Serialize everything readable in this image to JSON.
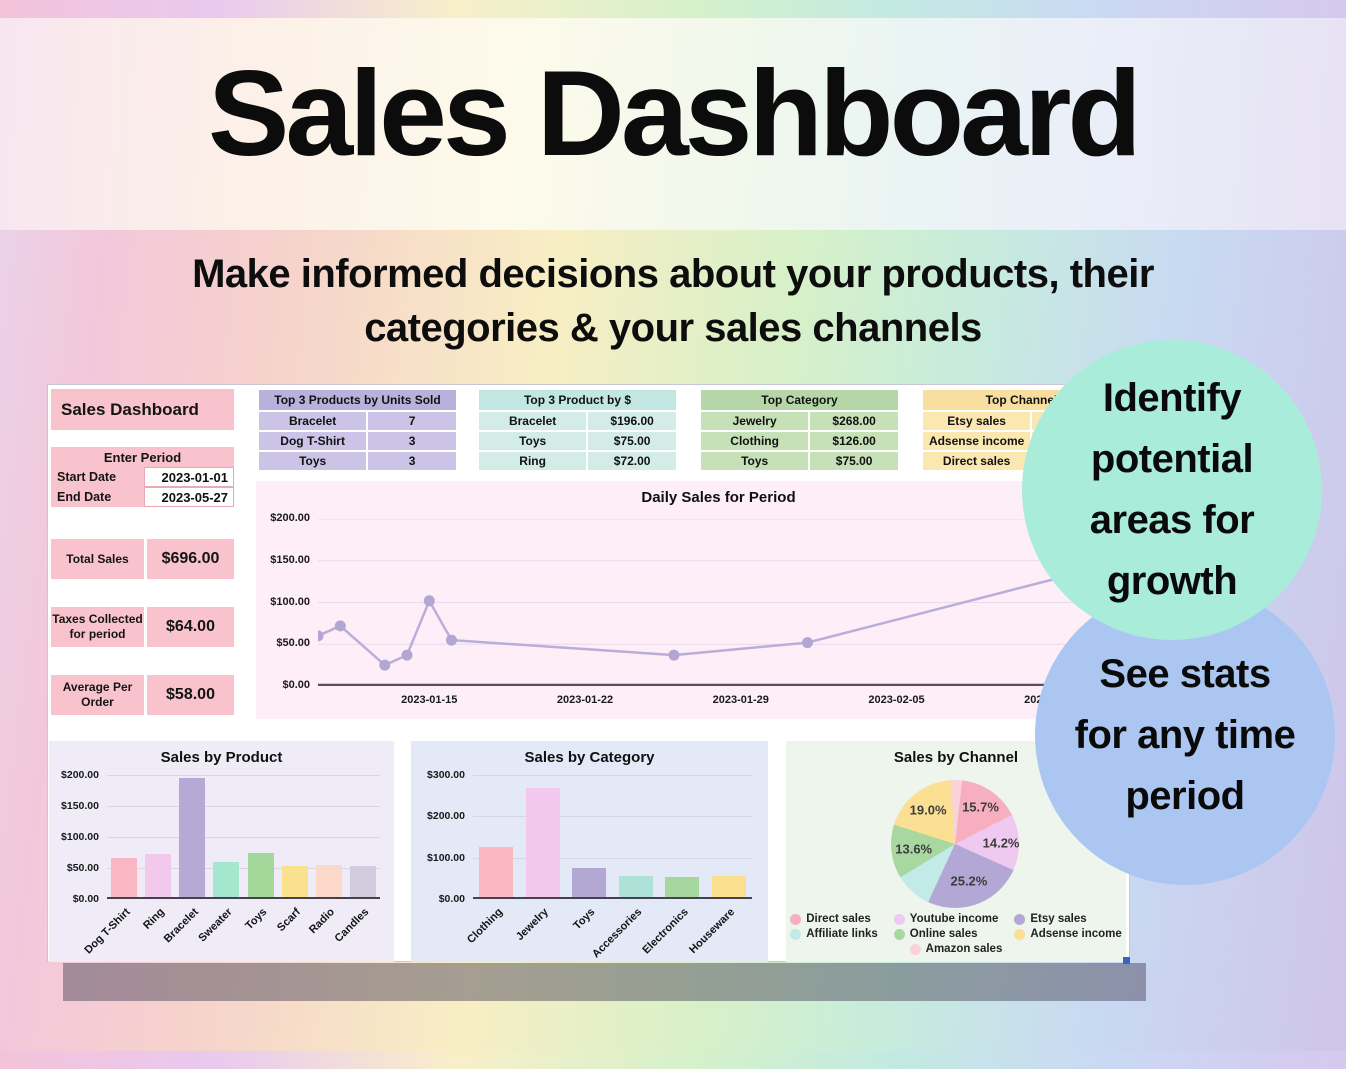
{
  "banner": {
    "title": "Sales Dashboard",
    "subtitle_lines": [
      "Make informed decisions about your products, their",
      "categories & your sales channels"
    ]
  },
  "badges": {
    "growth": {
      "lines": [
        "Identify",
        "potential",
        "areas for",
        "growth"
      ],
      "color": "#a9ecd9"
    },
    "period": {
      "lines": [
        "See stats",
        "for any time",
        "period"
      ],
      "color": "#abc6f1"
    }
  },
  "dashboard": {
    "panel": {
      "title": "Sales Dashboard",
      "enter_period": {
        "header": "Enter Period",
        "rows": [
          {
            "label": "Start Date",
            "value": "2023-01-01"
          },
          {
            "label": "End Date",
            "value": "2023-05-27"
          }
        ]
      },
      "stats": [
        {
          "label": "Total Sales",
          "value": "$696.00"
        },
        {
          "label": "Taxes Collected\nfor period",
          "value": "$64.00"
        },
        {
          "label": "Average Per\nOrder",
          "value": "$58.00"
        }
      ]
    },
    "top_tables": [
      {
        "title": "Top 3 Products by Units Sold",
        "accent": "purple",
        "header_color": "#b9b1dc",
        "row_color": "#cbc4e6",
        "rows": [
          [
            "Bracelet",
            "7"
          ],
          [
            "Dog T-Shirt",
            "3"
          ],
          [
            "Toys",
            "3"
          ]
        ]
      },
      {
        "title": "Top 3 Product by $",
        "accent": "teal",
        "header_color": "#c2e7e2",
        "row_color": "#d3ece8",
        "rows": [
          [
            "Bracelet",
            "$196.00"
          ],
          [
            "Toys",
            "$75.00"
          ],
          [
            "Ring",
            "$72.00"
          ]
        ]
      },
      {
        "title": "Top Category",
        "accent": "green",
        "header_color": "#b5d7a8",
        "row_color": "#c6e1b8",
        "rows": [
          [
            "Jewelry",
            "$268.00"
          ],
          [
            "Clothing",
            "$126.00"
          ],
          [
            "Toys",
            "$75.00"
          ]
        ]
      },
      {
        "title": "Top Channel",
        "accent": "yellow",
        "header_color": "#f8dfa0",
        "row_color": "#fae8b0",
        "rows": [
          [
            "Etsy sales",
            ""
          ],
          [
            "Adsense income",
            ""
          ],
          [
            "Direct sales",
            ""
          ]
        ]
      }
    ]
  },
  "colors": {
    "pink_block": "#f9c3cd",
    "line": "#b9aed9",
    "line_point": "#b2a6d2",
    "badge_teal": "#a9ecd9",
    "badge_blue": "#abc6f1"
  },
  "chart_data": [
    {
      "id": "daily",
      "type": "line",
      "title": "Daily Sales for Period",
      "points": [
        {
          "x": "2023-01-10",
          "y": 60
        },
        {
          "x": "2023-01-11",
          "y": 72
        },
        {
          "x": "2023-01-13",
          "y": 25
        },
        {
          "x": "2023-01-14",
          "y": 37
        },
        {
          "x": "2023-01-15",
          "y": 102
        },
        {
          "x": "2023-01-16",
          "y": 55
        },
        {
          "x": "2023-01-26",
          "y": 37
        },
        {
          "x": "2023-02-01",
          "y": 52
        },
        {
          "x": "2023-02-15",
          "y": 148
        }
      ],
      "xdomain": [
        "2023-01-10",
        "2023-02-15"
      ],
      "xticks": [
        "2023-01-15",
        "2023-01-22",
        "2023-01-29",
        "2023-02-05",
        "2023-02-12"
      ],
      "ylim": [
        0,
        200
      ],
      "yticks": [
        0,
        50,
        100,
        150,
        200
      ],
      "ytick_labels": [
        "$0.00",
        "$50.00",
        "$100.00",
        "$150.00",
        "$200.00"
      ],
      "grid": true,
      "line_color": "#b9aed9"
    },
    {
      "id": "product",
      "type": "bar",
      "title": "Sales by Product",
      "categories": [
        "Dog T-Shirt",
        "Ring",
        "Bracelet",
        "Sweater",
        "Toys",
        "Scarf",
        "Radio",
        "Candles"
      ],
      "values": [
        66,
        72,
        196,
        60,
        75,
        54,
        55,
        53
      ],
      "colors": [
        "#f8b7c2",
        "#f2c9ec",
        "#b6aad5",
        "#a5e6cf",
        "#a4d89a",
        "#f9e18e",
        "#fcd8ca",
        "#d2ccdf"
      ],
      "ylim": [
        0,
        200
      ],
      "yticks": [
        0,
        50,
        100,
        150,
        200
      ],
      "ytick_labels": [
        "$0.00",
        "$50.00",
        "$100.00",
        "$150.00",
        "$200.00"
      ],
      "grid": true
    },
    {
      "id": "category",
      "type": "bar",
      "title": "Sales by Category",
      "categories": [
        "Clothing",
        "Jewelry",
        "Toys",
        "Accessories",
        "Electronics",
        "Houseware"
      ],
      "values": [
        126,
        268,
        75,
        55,
        54,
        56
      ],
      "colors": [
        "#f9b8c2",
        "#f2c8ee",
        "#b3a7d4",
        "#aee2d8",
        "#a5d79e",
        "#f9df8e"
      ],
      "ylim": [
        0,
        300
      ],
      "yticks": [
        0,
        100,
        200,
        300
      ],
      "ytick_labels": [
        "$0.00",
        "$100.00",
        "$200.00",
        "$300.00"
      ],
      "grid": true
    },
    {
      "id": "channel",
      "type": "pie",
      "title": "Sales by Channel",
      "start_angle_deg": -4,
      "slices": [
        {
          "name": "Amazon sales",
          "pct": 2.9,
          "color": "#fad2da",
          "show_label": false,
          "label_r": 0.7
        },
        {
          "name": "Direct sales",
          "pct": 15.7,
          "color": "#f7aebe",
          "show_label": true,
          "label_r": 0.7
        },
        {
          "name": "Youtube income",
          "pct": 14.2,
          "color": "#efc9ef",
          "show_label": true,
          "label_r": 0.72
        },
        {
          "name": "Etsy sales",
          "pct": 25.2,
          "color": "#b3a7d5",
          "show_label": true,
          "label_r": 0.62
        },
        {
          "name": "Affiliate links",
          "pct": 9.4,
          "color": "#c2ebe7",
          "show_label": false,
          "label_r": 0.7
        },
        {
          "name": "Online sales",
          "pct": 13.6,
          "color": "#a8d79f",
          "show_label": true,
          "label_r": 0.65
        },
        {
          "name": "Adsense income",
          "pct": 19.0,
          "color": "#fbdf92",
          "show_label": true,
          "label_r": 0.68
        }
      ],
      "legend": [
        "Direct sales",
        "Youtube income",
        "Etsy sales",
        "Affiliate links",
        "Online sales",
        "Adsense income",
        "Amazon sales"
      ],
      "legend_position": "bottom"
    }
  ]
}
